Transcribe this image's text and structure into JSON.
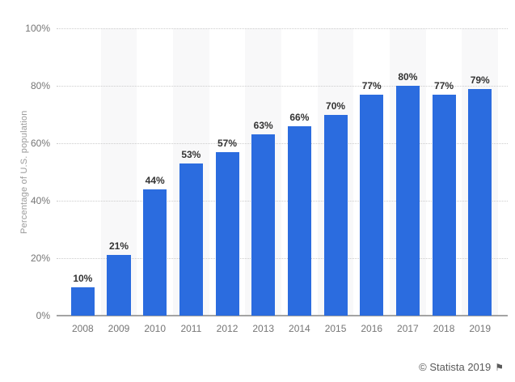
{
  "chart_data": {
    "type": "bar",
    "title": "",
    "xlabel": "",
    "ylabel": "Percentage of U.S. population",
    "categories": [
      "2008",
      "2009",
      "2010",
      "2011",
      "2012",
      "2013",
      "2014",
      "2015",
      "2016",
      "2017",
      "2018",
      "2019"
    ],
    "values": [
      10,
      21,
      44,
      53,
      57,
      63,
      66,
      70,
      77,
      80,
      77,
      79
    ],
    "bar_labels": [
      "10%",
      "21%",
      "44%",
      "53%",
      "57%",
      "63%",
      "66%",
      "70%",
      "77%",
      "80%",
      "77%",
      "79%"
    ],
    "ylim": [
      0,
      100
    ],
    "yticks": [
      0,
      20,
      40,
      60,
      80,
      100
    ],
    "ytick_labels": [
      "0%",
      "20%",
      "40%",
      "60%",
      "80%",
      "100%"
    ],
    "grid": true,
    "legend": null,
    "colors": {
      "bar": "#2b6cdf",
      "column_stripe": "#f8f8f9",
      "gridline": "#cccccc",
      "axis_line": "#a3a3a3",
      "tick_text": "#757575",
      "value_text": "#333333",
      "ylabel_text": "#9a9a9a",
      "attribution_text": "#5a5a5a"
    }
  },
  "footer": {
    "attribution": "© Statista 2019",
    "flag_icon": "⚑"
  }
}
